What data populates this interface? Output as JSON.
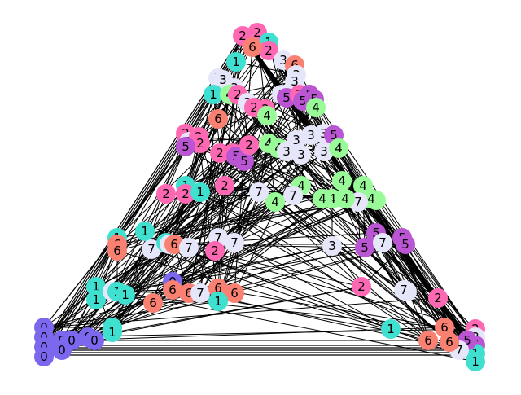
{
  "diagram": {
    "type": "network-graph",
    "description_colors": {
      "0": "#7b68ee",
      "1": "#40e0d0",
      "2": "#ff69b4",
      "3": "#e6e6fa",
      "4": "#98fb98",
      "5": "#ba55d3",
      "6": "#fa8072",
      "7": "#e6e6fa"
    },
    "edge_color": "#000000",
    "node_labels_visible": [
      "0",
      "1",
      "2",
      "3",
      "4",
      "5",
      "6",
      "7"
    ]
  }
}
